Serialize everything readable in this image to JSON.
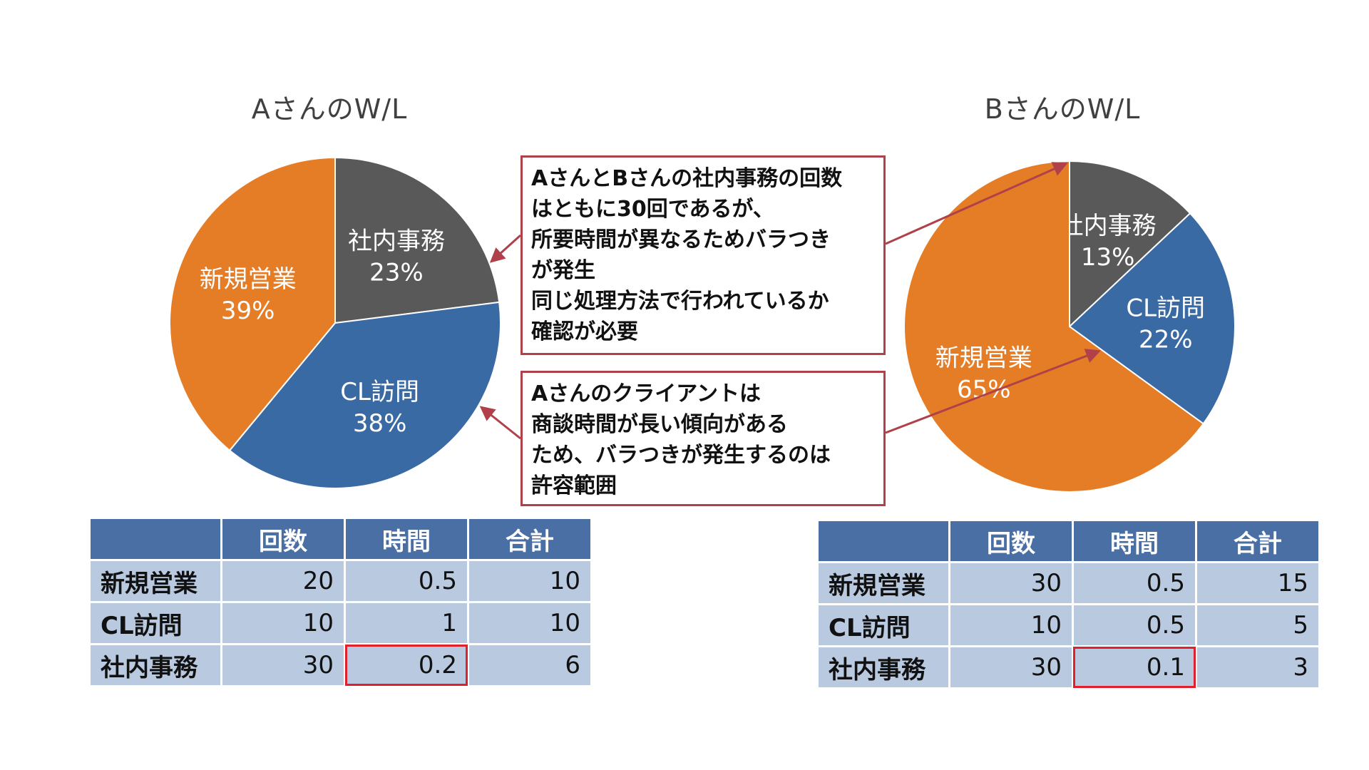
{
  "chart_data": [
    {
      "type": "pie",
      "title": "AさんのW/L",
      "slices": [
        {
          "label": "社内事務",
          "value": 23,
          "display": "23%",
          "color": "#595959"
        },
        {
          "label": "CL訪問",
          "value": 38,
          "display": "38%",
          "color": "#3a6aa4"
        },
        {
          "label": "新規営業",
          "value": 39,
          "display": "39%",
          "color": "#e57c26"
        }
      ]
    },
    {
      "type": "pie",
      "title": "BさんのW/L",
      "slices": [
        {
          "label": "社内事務",
          "value": 13,
          "display": "13%",
          "color": "#595959"
        },
        {
          "label": "CL訪問",
          "value": 22,
          "display": "22%",
          "color": "#3a6aa4"
        },
        {
          "label": "新規営業",
          "value": 65,
          "display": "65%",
          "color": "#e57c26"
        }
      ]
    },
    {
      "type": "table",
      "columns": [
        "",
        "回数",
        "時間",
        "合計"
      ],
      "rows": [
        {
          "label": "新規営業",
          "values": [
            "20",
            "0.5",
            "10"
          ]
        },
        {
          "label": "CL訪問",
          "values": [
            "10",
            "1",
            "10"
          ]
        },
        {
          "label": "社内事務",
          "values": [
            "30",
            "0.2",
            "6"
          ]
        }
      ],
      "highlight": {
        "row": 2,
        "col": 1
      }
    },
    {
      "type": "table",
      "columns": [
        "",
        "回数",
        "時間",
        "合計"
      ],
      "rows": [
        {
          "label": "新規営業",
          "values": [
            "30",
            "0.5",
            "15"
          ]
        },
        {
          "label": "CL訪問",
          "values": [
            "10",
            "0.5",
            "5"
          ]
        },
        {
          "label": "社内事務",
          "values": [
            "30",
            "0.1",
            "3"
          ]
        }
      ],
      "highlight": {
        "row": 2,
        "col": 1
      }
    }
  ],
  "callouts": [
    {
      "lines": [
        "AさんとBさんの社内事務の回数",
        "はともに30回であるが、",
        "所要時間が異なるためバラつき",
        "が発生",
        "同じ処理方法で行われているか",
        "確認が必要"
      ]
    },
    {
      "lines": [
        "Aさんのクライアントは",
        "商談時間が長い傾向がある",
        "ため、バラつきが発生するのは",
        "許容範囲"
      ]
    }
  ],
  "colors": {
    "accent_border": "#b0404a",
    "highlight_border": "#e0202a",
    "table_header": "#4a6fa5",
    "table_cell": "#b8c9e0"
  }
}
